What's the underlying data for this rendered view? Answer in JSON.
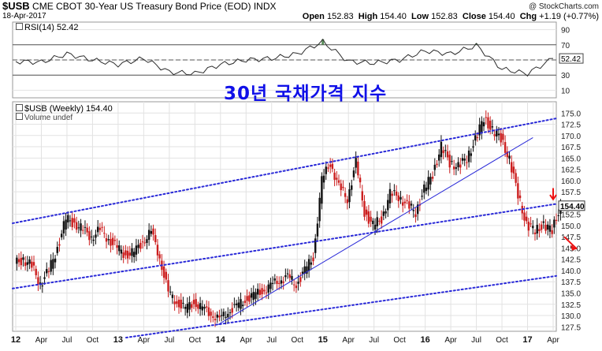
{
  "header": {
    "symbol": "$USB",
    "description": "CME CBOT 30-Year US Treasury Bond Price (EOD)",
    "exchange": "INDX",
    "date": "18-Apr-2017",
    "watermark": "@ StockCharts.com",
    "open_label": "Open",
    "open": "152.83",
    "high_label": "High",
    "high": "154.40",
    "low_label": "Low",
    "low": "152.83",
    "close_label": "Close",
    "close": "154.40",
    "chg_label": "Chg",
    "chg": "+1.19 (+0.77%)"
  },
  "annotation": "30년 국채가격 지수",
  "colors": {
    "up": "#111111",
    "down": "#cc1f1f",
    "rsi_line": "#2b2b2b",
    "rsi_fill": "#3d7a3d",
    "trend": "#2a2ad8",
    "arrow": "#ee1111",
    "grid": "#e2e2e2"
  },
  "chart_data": [
    {
      "type": "line",
      "indicator": "RSI",
      "legend": "RSI(14) 52.42",
      "value_label": "52.42",
      "ylim": [
        0,
        100
      ],
      "yticks": [
        "90",
        "70",
        "50",
        "30",
        "10"
      ],
      "ytick_values": [
        90,
        70,
        50,
        30,
        10
      ],
      "reference_lines": [
        70,
        50,
        30
      ],
      "x": [
        "2012-01",
        "2012-04",
        "2012-07",
        "2012-10",
        "2013-01",
        "2013-04",
        "2013-07",
        "2013-10",
        "2014-01",
        "2014-04",
        "2014-07",
        "2014-10",
        "2015-01",
        "2015-04",
        "2015-07",
        "2015-10",
        "2016-01",
        "2016-04",
        "2016-07",
        "2016-10",
        "2017-01",
        "2017-04"
      ],
      "values": [
        48,
        47,
        58,
        50,
        44,
        52,
        34,
        32,
        44,
        50,
        52,
        58,
        74,
        48,
        46,
        50,
        62,
        58,
        69,
        38,
        32,
        52
      ]
    },
    {
      "type": "candlestick",
      "legend": "$USB (Weekly) 154.40",
      "volume_legend": "Volume undef",
      "last_label": "154.40",
      "ylim": [
        126.5,
        177.5
      ],
      "yticks": [
        "175.0",
        "172.5",
        "170.0",
        "167.5",
        "165.0",
        "162.5",
        "160.0",
        "157.5",
        "155.0",
        "152.5",
        "150.0",
        "147.5",
        "145.0",
        "142.5",
        "140.0",
        "137.5",
        "135.0",
        "132.5",
        "130.0",
        "127.5"
      ],
      "ytick_values": [
        175,
        172.5,
        170,
        167.5,
        165,
        162.5,
        160,
        157.5,
        155,
        152.5,
        150,
        147.5,
        145,
        142.5,
        140,
        137.5,
        135,
        132.5,
        130,
        127.5
      ],
      "xticks": [
        "12",
        "Apr",
        "Jul",
        "Oct",
        "13",
        "Apr",
        "Jul",
        "Oct",
        "14",
        "Apr",
        "Jul",
        "Oct",
        "15",
        "Apr",
        "Jul",
        "Oct",
        "16",
        "Apr",
        "Jul",
        "Oct",
        "17",
        "Apr"
      ],
      "x": [
        "2012-01",
        "2012-02",
        "2012-03",
        "2012-04",
        "2012-05",
        "2012-06",
        "2012-07",
        "2012-08",
        "2012-09",
        "2012-10",
        "2012-11",
        "2012-12",
        "2013-01",
        "2013-02",
        "2013-03",
        "2013-04",
        "2013-05",
        "2013-06",
        "2013-07",
        "2013-08",
        "2013-09",
        "2013-10",
        "2013-11",
        "2013-12",
        "2014-01",
        "2014-02",
        "2014-03",
        "2014-04",
        "2014-05",
        "2014-06",
        "2014-07",
        "2014-08",
        "2014-09",
        "2014-10",
        "2014-11",
        "2014-12",
        "2015-01",
        "2015-02",
        "2015-03",
        "2015-04",
        "2015-05",
        "2015-06",
        "2015-07",
        "2015-08",
        "2015-09",
        "2015-10",
        "2015-11",
        "2015-12",
        "2016-01",
        "2016-02",
        "2016-03",
        "2016-04",
        "2016-05",
        "2016-06",
        "2016-07",
        "2016-08",
        "2016-09",
        "2016-10",
        "2016-11",
        "2016-12",
        "2017-01",
        "2017-02",
        "2017-03",
        "2017-04"
      ],
      "close": [
        142.5,
        141.0,
        137.0,
        140.0,
        145.0,
        151.5,
        150.5,
        149.0,
        147.5,
        149.0,
        147.0,
        145.0,
        143.5,
        144.0,
        146.5,
        148.5,
        143.0,
        135.0,
        133.0,
        131.5,
        133.0,
        131.5,
        130.5,
        129.0,
        131.0,
        132.0,
        133.5,
        134.5,
        135.5,
        136.5,
        138.0,
        138.5,
        137.0,
        140.0,
        143.0,
        160.0,
        164.0,
        158.5,
        156.0,
        164.0,
        153.0,
        150.0,
        151.5,
        157.0,
        156.5,
        154.5,
        153.0,
        158.0,
        161.5,
        167.5,
        164.0,
        163.0,
        165.0,
        169.0,
        174.0,
        171.0,
        169.5,
        164.5,
        157.0,
        150.0,
        149.0,
        150.0,
        149.0,
        154.4
      ]
    }
  ]
}
